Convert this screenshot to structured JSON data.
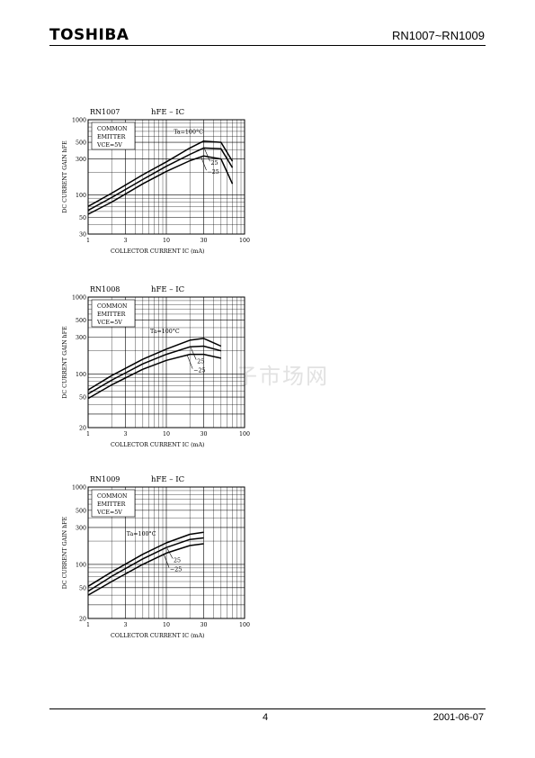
{
  "header": {
    "brand": "TOSHIBA",
    "part_number": "RN1007~RN1009"
  },
  "footer": {
    "page_number": "4",
    "date": "2001-06-07"
  },
  "watermark": "子市场网",
  "chart_data": [
    {
      "type": "line",
      "model": "RN1007",
      "title": "hFE – IC",
      "ylabel": "DC CURRENT GAIN hFE",
      "xlabel": "COLLECTOR CURRENT IC (mA)",
      "x_scale": "log",
      "y_scale": "log",
      "xlim": [
        1,
        100
      ],
      "ylim": [
        30,
        1000
      ],
      "x_ticks": [
        "1",
        "3",
        "10",
        "30",
        "100"
      ],
      "y_ticks": [
        "1000",
        "500",
        "300",
        "100",
        "50",
        "30"
      ],
      "conditions": [
        "COMMON",
        "EMITTER",
        "VCE=5V"
      ],
      "series": [
        {
          "name": "Ta=100°C",
          "x": [
            1,
            2,
            5,
            10,
            20,
            30,
            50,
            70
          ],
          "y": [
            70,
            105,
            185,
            275,
            420,
            520,
            500,
            280
          ]
        },
        {
          "name": "25",
          "x": [
            1,
            2,
            5,
            10,
            20,
            30,
            50,
            70
          ],
          "y": [
            62,
            92,
            160,
            240,
            345,
            420,
            410,
            230
          ]
        },
        {
          "name": "−25",
          "x": [
            1,
            2,
            5,
            10,
            20,
            30,
            50,
            70
          ],
          "y": [
            55,
            80,
            140,
            205,
            285,
            330,
            300,
            140
          ]
        }
      ]
    },
    {
      "type": "line",
      "model": "RN1008",
      "title": "hFE – IC",
      "ylabel": "DC CURRENT GAIN hFE",
      "xlabel": "COLLECTOR CURRENT IC (mA)",
      "x_scale": "log",
      "y_scale": "log",
      "xlim": [
        1,
        100
      ],
      "ylim": [
        20,
        1000
      ],
      "x_ticks": [
        "1",
        "3",
        "10",
        "30",
        "100"
      ],
      "y_ticks": [
        "1000",
        "500",
        "300",
        "100",
        "50",
        "20"
      ],
      "conditions": [
        "COMMON",
        "EMITTER",
        "VCE=5V"
      ],
      "series": [
        {
          "name": "Ta=100°C",
          "x": [
            1,
            2,
            5,
            10,
            20,
            30,
            50
          ],
          "y": [
            62,
            95,
            155,
            210,
            275,
            290,
            230
          ]
        },
        {
          "name": "25",
          "x": [
            1,
            2,
            5,
            10,
            20,
            30,
            50
          ],
          "y": [
            55,
            83,
            135,
            180,
            225,
            230,
            200
          ]
        },
        {
          "name": "−25",
          "x": [
            1,
            2,
            5,
            10,
            20,
            30,
            50
          ],
          "y": [
            48,
            72,
            115,
            150,
            180,
            180,
            160
          ]
        }
      ]
    },
    {
      "type": "line",
      "model": "RN1009",
      "title": "hFE – IC",
      "ylabel": "DC CURRENT GAIN hFE",
      "xlabel": "COLLECTOR CURRENT IC (mA)",
      "x_scale": "log",
      "y_scale": "log",
      "xlim": [
        1,
        100
      ],
      "ylim": [
        20,
        1000
      ],
      "x_ticks": [
        "1",
        "3",
        "10",
        "30",
        "100"
      ],
      "y_ticks": [
        "1000",
        "500",
        "300",
        "100",
        "50",
        "20"
      ],
      "conditions": [
        "COMMON",
        "EMITTER",
        "VCE=5V"
      ],
      "series": [
        {
          "name": "Ta=100°C",
          "x": [
            1,
            2,
            5,
            10,
            20,
            30
          ],
          "y": [
            52,
            80,
            135,
            190,
            245,
            260
          ]
        },
        {
          "name": "25",
          "x": [
            1,
            2,
            5,
            10,
            20,
            30
          ],
          "y": [
            45,
            70,
            118,
            165,
            210,
            220
          ]
        },
        {
          "name": "−25",
          "x": [
            1,
            2,
            5,
            10,
            20,
            30
          ],
          "y": [
            40,
            60,
            100,
            140,
            175,
            185
          ]
        }
      ]
    }
  ]
}
